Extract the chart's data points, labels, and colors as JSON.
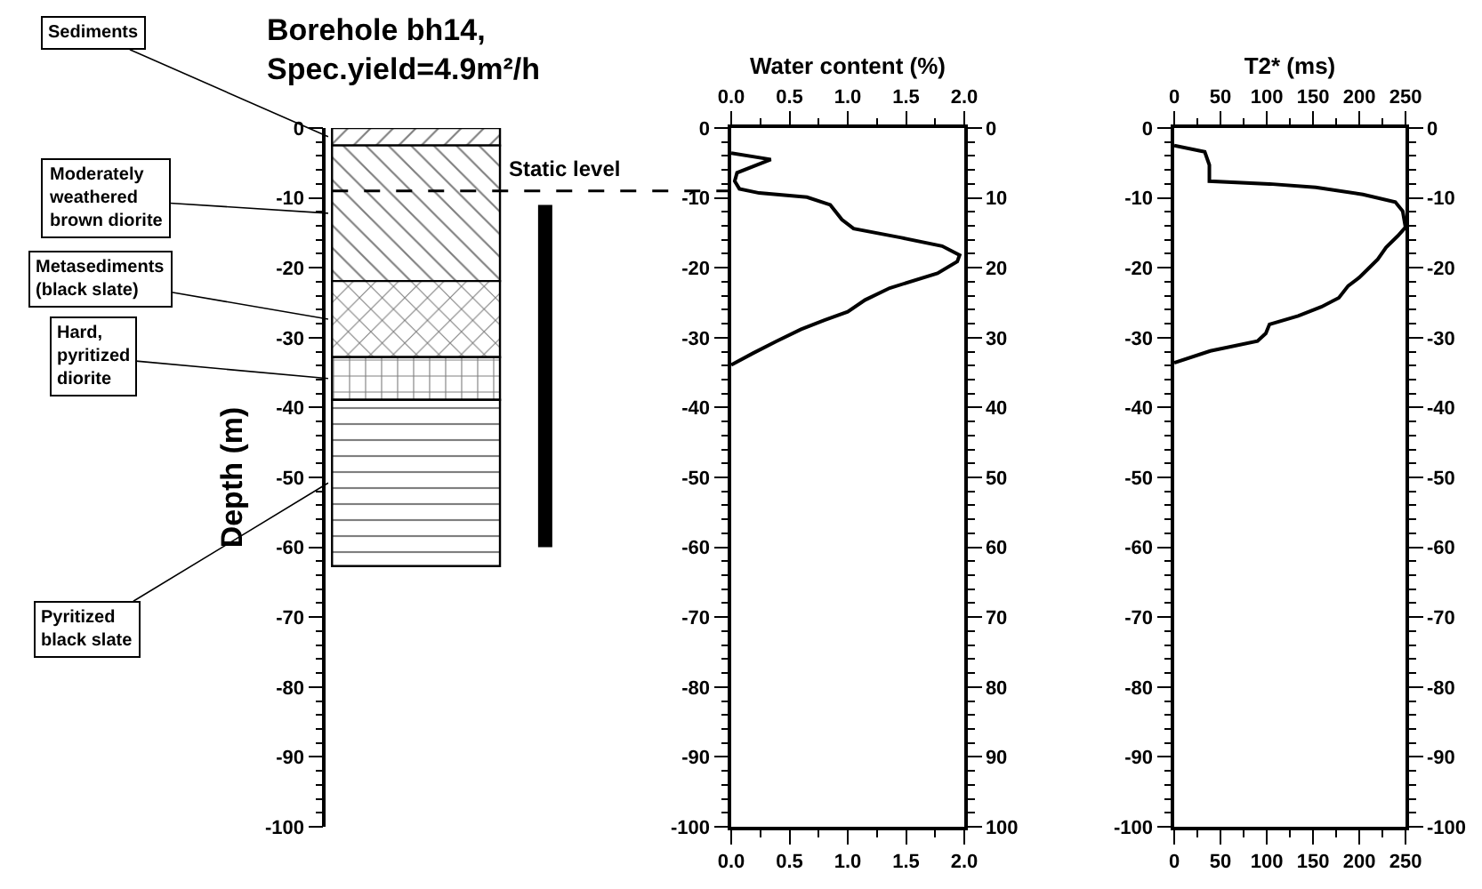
{
  "chart_data": [
    {
      "type": "bar",
      "title": "Borehole bh14,\nSpec.yield=4.9m²/h",
      "ylabel": "Depth (m)",
      "categories": [
        null,
        null
      ],
      "stacked": true,
      "series": [
        {
          "name": "Sediments",
          "color": "#000000",
          "values": [
            -2.5,
            null
          ]
        },
        {
          "name": "Moderately\nweathered\nbrown diorite",
          "color": "#000000",
          "values": [
            -19.4,
            null
          ]
        },
        {
          "name": "Metasediments\n(black slate)",
          "color": "#000000",
          "values": [
            -10.9,
            null
          ]
        },
        {
          "name": "Hard,\npyritized\ndiorite",
          "color": "#000000",
          "values": [
            -6.1,
            null
          ]
        },
        {
          "name": "Pyritized\nblack slate",
          "color": "#000000",
          "values": [
            -23.8,
            null
          ]
        },
        {
          "type": "bar",
          "color": "#000000",
          "values": [
            null,
            -49
          ],
          "base": [
            null,
            -11
          ]
        }
      ],
      "ylim": [
        -100,
        0
      ],
      "yticks": [
        0,
        -10,
        -20,
        -30,
        -40,
        -50,
        -60,
        -70,
        -80,
        -90,
        -100
      ],
      "tick_labels": "y",
      "ref_lines": [
        {
          "axis": "y",
          "value": -9,
          "label": "Static level",
          "line_style": "dashed",
          "color": "#000000"
        }
      ]
    },
    {
      "type": "line",
      "x2label": "Water content (%)",
      "marker": "none",
      "line_style": "solid",
      "series": [
        {
          "color": "#000000",
          "x": [
            0,
            0.34,
            0.05,
            0.03,
            0.07,
            0.24,
            0.65,
            0.85,
            0.95,
            1.05,
            1.46,
            1.81,
            1.96,
            1.94,
            1.77,
            1.36,
            1.15,
            1.0,
            0.8,
            0.6,
            0.39,
            0.19,
            0
          ],
          "values": [
            -3.6,
            -4.5,
            -6.4,
            -7.6,
            -8.7,
            -9.3,
            -9.9,
            -11,
            -13.1,
            -14.4,
            -15.7,
            -16.9,
            -18.2,
            -19.1,
            -20.8,
            -22.9,
            -24.6,
            -26.3,
            -27.5,
            -28.8,
            -30.5,
            -32.2,
            -33.9
          ]
        }
      ],
      "xlim": [
        0,
        2
      ],
      "xticks": [
        {
          "value": 0,
          "label": "0.0"
        },
        0.5,
        {
          "value": 1,
          "label": "1.0"
        },
        1.5,
        {
          "value": 2,
          "label": "2.0"
        }
      ],
      "x2lim": [
        0,
        2
      ],
      "x2ticks": [
        {
          "value": 0,
          "label": "0.0"
        },
        0.5,
        {
          "value": 1,
          "label": "1.0"
        },
        1.5,
        {
          "value": 2,
          "label": "2.0"
        }
      ],
      "ylim": [
        -100,
        0
      ],
      "yticks": [
        0,
        -10,
        -20,
        -30,
        -40,
        -50,
        -60,
        -70,
        -80,
        -90,
        -100
      ],
      "y2lim": [
        100,
        0
      ],
      "y2ticks": [
        0,
        10,
        20,
        30,
        40,
        50,
        60,
        70,
        80,
        90,
        100
      ]
    },
    {
      "type": "line",
      "x2label": "T2* (ms)",
      "marker": "none",
      "line_style": "solid",
      "series": [
        {
          "color": "#000000",
          "x": [
            0,
            33,
            38,
            38,
            103,
            153,
            204,
            239,
            247,
            250,
            242,
            229,
            220,
            210,
            200,
            188,
            178,
            159,
            134,
            103,
            99,
            90,
            39,
            0
          ],
          "values": [
            -2.5,
            -3.4,
            -5.3,
            -7.6,
            -8.0,
            -8.5,
            -9.5,
            -10.6,
            -11.9,
            -14.2,
            -15.4,
            -17.1,
            -18.8,
            -20.1,
            -21.4,
            -22.6,
            -24.3,
            -25.6,
            -26.9,
            -28.1,
            -29.4,
            -30.5,
            -31.9,
            -33.6
          ]
        }
      ],
      "xlim": [
        0,
        250
      ],
      "xticks": [
        0,
        50,
        100,
        150,
        200,
        250
      ],
      "x2lim": [
        0,
        250
      ],
      "x2ticks": [
        0,
        50,
        100,
        150,
        200,
        250
      ],
      "ylim": [
        -100,
        0
      ],
      "yticks": [
        0,
        -10,
        -20,
        -30,
        -40,
        -50,
        -60,
        -70,
        -80,
        -90,
        -100
      ],
      "y2lim": [
        -100,
        0
      ],
      "y2ticks": [
        0,
        -10,
        -20,
        -30,
        -40,
        -50,
        -60,
        -70,
        -80,
        -90,
        -100
      ]
    }
  ]
}
